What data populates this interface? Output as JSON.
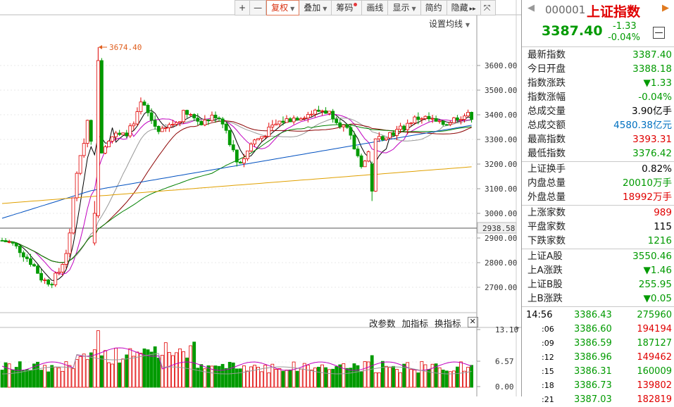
{
  "toolbar": {
    "buttons": [
      {
        "label": "+",
        "dropdown": false
      },
      {
        "label": "—",
        "dropdown": false
      },
      {
        "label": "复权",
        "dropdown": true,
        "active": true
      },
      {
        "label": "叠加",
        "dropdown": true
      },
      {
        "label": "筹码",
        "dropdown": false,
        "dot": true
      },
      {
        "label": "画线",
        "dropdown": false
      },
      {
        "label": "显示",
        "dropdown": true
      },
      {
        "label": "简约",
        "dropdown": false
      },
      {
        "label": "隐藏",
        "dropdown": false,
        "arrows": "▸▸"
      },
      {
        "label": "⤧",
        "dropdown": false
      }
    ]
  },
  "chart": {
    "ma_settings": "设置均线",
    "peak_label": "3674.40",
    "price_axis": [
      "3600.00",
      "3500.00",
      "3400.00",
      "3300.00",
      "3200.00",
      "3100.00",
      "3000.00",
      "2900.00",
      "2800.00",
      "2700.00"
    ],
    "current_price_tag": "2938.58",
    "volume_toolbar": [
      "改参数",
      "加指标",
      "换指标"
    ],
    "volume_axis": [
      "13.10",
      "6.57",
      "0.00"
    ]
  },
  "quote": {
    "code": "000001",
    "name": "上证指数",
    "price": "3387.40",
    "change": "-1.33",
    "change_pct": "-0.04%",
    "collapse": "—",
    "fields_1": [
      {
        "label": "最新指数",
        "value": "3387.40",
        "color": "green"
      },
      {
        "label": "今日开盘",
        "value": "3388.18",
        "color": "green"
      },
      {
        "label": "指数涨跌",
        "value": "▼1.33",
        "color": "green"
      },
      {
        "label": "指数涨幅",
        "value": "-0.04%",
        "color": "green"
      },
      {
        "label": "总成交量",
        "value": "3.90",
        "unit": "亿手",
        "color": "black"
      },
      {
        "label": "总成交额",
        "value": "4580.38",
        "unit": "亿元",
        "color": "blue"
      },
      {
        "label": "最高指数",
        "value": "3393.31",
        "color": "red"
      },
      {
        "label": "最低指数",
        "value": "3376.42",
        "color": "green"
      }
    ],
    "fields_2": [
      {
        "label": "上证换手",
        "value": "0.82%",
        "color": "black"
      },
      {
        "label": "内盘总量",
        "value": "20010",
        "unit": "万手",
        "color": "green"
      },
      {
        "label": "外盘总量",
        "value": "18992",
        "unit": "万手",
        "color": "red"
      }
    ],
    "fields_3": [
      {
        "label": "上涨家数",
        "value": "989",
        "color": "red"
      },
      {
        "label": "平盘家数",
        "value": "115",
        "color": "black"
      },
      {
        "label": "下跌家数",
        "value": "1216",
        "color": "green"
      }
    ],
    "fields_4": [
      {
        "label": "上证A股",
        "value": "3550.46",
        "color": "green"
      },
      {
        "label": "上A涨跌",
        "value": "▼1.46",
        "color": "green"
      },
      {
        "label": "上证B股",
        "value": "255.95",
        "color": "green"
      },
      {
        "label": "上B涨跌",
        "value": "▼0.05",
        "color": "green"
      }
    ],
    "ticks": [
      {
        "time": "14:56",
        "price": "3386.43",
        "vol": "275960",
        "vcolor": "green"
      },
      {
        "time": ":06",
        "price": "3386.60",
        "vol": "194194",
        "vcolor": "red"
      },
      {
        "time": ":09",
        "price": "3386.59",
        "vol": "187127",
        "vcolor": "green"
      },
      {
        "time": ":12",
        "price": "3386.96",
        "vol": "149462",
        "vcolor": "red"
      },
      {
        "time": ":15",
        "price": "3386.31",
        "vol": "160009",
        "vcolor": "green"
      },
      {
        "time": ":18",
        "price": "3386.73",
        "vol": "139802",
        "vcolor": "red"
      },
      {
        "time": ":21",
        "price": "3387.03",
        "vol": "182819",
        "vcolor": "red"
      }
    ]
  }
}
